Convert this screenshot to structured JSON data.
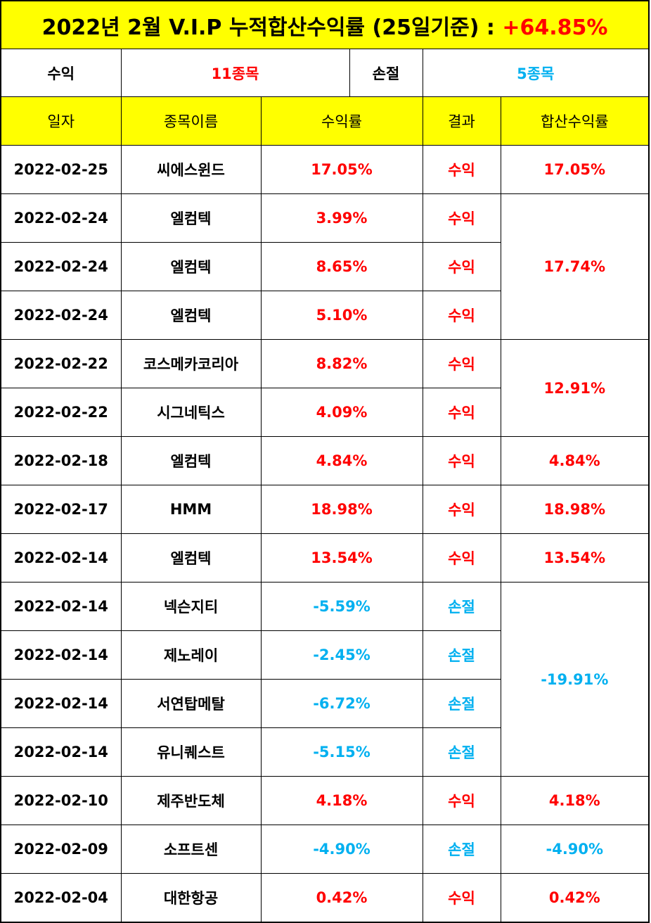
{
  "title": {
    "text": "2022년 2월 V.I.P 누적합산수익률 (25일기준) : ",
    "total_return": "+64.85%"
  },
  "summary": {
    "profit_label": "수익",
    "profit_count": "11종목",
    "loss_label": "손절",
    "loss_count": "5종목"
  },
  "headers": [
    "일자",
    "종목이름",
    "수익률",
    "결과",
    "합산수익률"
  ],
  "colors": {
    "profit": "#ff0000",
    "loss": "#00b0f0",
    "highlight": "#ffff00"
  },
  "rows": [
    {
      "date": "2022-02-25",
      "name": "씨에스윈드",
      "rate": "17.05%",
      "result": "수익"
    },
    {
      "date": "2022-02-24",
      "name": "엘컴텍",
      "rate": "3.99%",
      "result": "수익"
    },
    {
      "date": "2022-02-24",
      "name": "엘컴텍",
      "rate": "8.65%",
      "result": "수익"
    },
    {
      "date": "2022-02-24",
      "name": "엘컴텍",
      "rate": "5.10%",
      "result": "수익"
    },
    {
      "date": "2022-02-22",
      "name": "코스메카코리아",
      "rate": "8.82%",
      "result": "수익"
    },
    {
      "date": "2022-02-22",
      "name": "시그네틱스",
      "rate": "4.09%",
      "result": "수익"
    },
    {
      "date": "2022-02-18",
      "name": "엘컴텍",
      "rate": "4.84%",
      "result": "수익"
    },
    {
      "date": "2022-02-17",
      "name": "HMM",
      "rate": "18.98%",
      "result": "수익"
    },
    {
      "date": "2022-02-14",
      "name": "엘컴텍",
      "rate": "13.54%",
      "result": "수익"
    },
    {
      "date": "2022-02-14",
      "name": "넥슨지티",
      "rate": "-5.59%",
      "result": "손절"
    },
    {
      "date": "2022-02-14",
      "name": "제노레이",
      "rate": "-2.45%",
      "result": "손절"
    },
    {
      "date": "2022-02-14",
      "name": "서연탑메탈",
      "rate": "-6.72%",
      "result": "손절"
    },
    {
      "date": "2022-02-14",
      "name": "유니퀘스트",
      "rate": "-5.15%",
      "result": "손절"
    },
    {
      "date": "2022-02-10",
      "name": "제주반도체",
      "rate": "4.18%",
      "result": "수익"
    },
    {
      "date": "2022-02-09",
      "name": "소프트센",
      "rate": "-4.90%",
      "result": "손절"
    },
    {
      "date": "2022-02-04",
      "name": "대한항공",
      "rate": "0.42%",
      "result": "수익"
    }
  ],
  "combined": [
    {
      "value": "17.05%",
      "rows": 1,
      "type": "profit"
    },
    {
      "value": "17.74%",
      "rows": 3,
      "type": "profit"
    },
    {
      "value": "12.91%",
      "rows": 2,
      "type": "profit"
    },
    {
      "value": "4.84%",
      "rows": 1,
      "type": "profit"
    },
    {
      "value": "18.98%",
      "rows": 1,
      "type": "profit"
    },
    {
      "value": "13.54%",
      "rows": 1,
      "type": "profit"
    },
    {
      "value": "-19.91%",
      "rows": 4,
      "type": "loss"
    },
    {
      "value": "4.18%",
      "rows": 1,
      "type": "profit"
    },
    {
      "value": "-4.90%",
      "rows": 1,
      "type": "loss"
    },
    {
      "value": "0.42%",
      "rows": 1,
      "type": "profit"
    }
  ]
}
